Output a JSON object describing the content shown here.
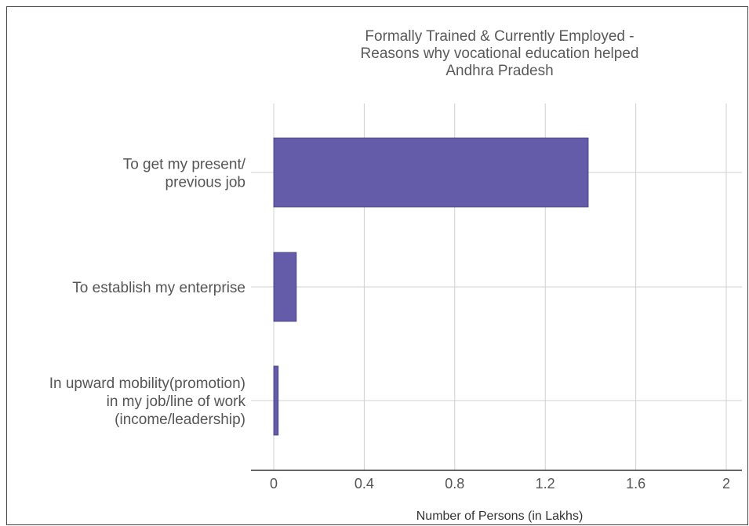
{
  "chart_data": {
    "type": "bar",
    "orientation": "horizontal",
    "title_lines": [
      "Formally Trained & Currently Employed -",
      "Reasons why vocational education helped",
      "Andhra Pradesh"
    ],
    "categories": [
      [
        "To get my present/",
        "previous job"
      ],
      [
        "To establish my enterprise"
      ],
      [
        "In upward mobility(promotion)",
        "in my job/line of work",
        "(income/leadership)"
      ]
    ],
    "values": [
      1.39,
      0.1,
      0.02
    ],
    "xlabel": "Number of Persons (in Lakhs)",
    "xlim": [
      0,
      2
    ],
    "xticks": [
      0,
      0.4,
      0.8,
      1.2,
      1.6,
      2
    ],
    "xtick_labels": [
      "0",
      "0.4",
      "0.8",
      "1.2",
      "1.6",
      "2"
    ],
    "grid": true,
    "legend": "none",
    "bar_color": "#655ca9"
  }
}
